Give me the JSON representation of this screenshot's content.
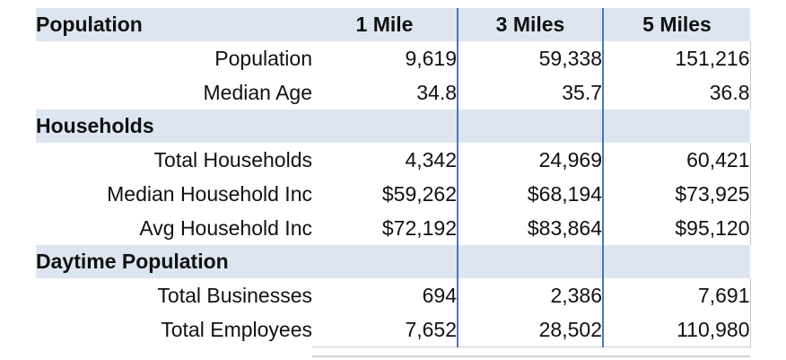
{
  "header": {
    "title": "Population",
    "col1": "1 Mile",
    "col2": "3 Miles",
    "col3": "5 Miles"
  },
  "population": [
    {
      "label": "Population",
      "v1": "9,619",
      "v2": "59,338",
      "v3": "151,216"
    },
    {
      "label": "Median Age",
      "v1": "34.8",
      "v2": "35.7",
      "v3": "36.8"
    }
  ],
  "households_title": "Households",
  "households": [
    {
      "label": "Total Households",
      "v1": "4,342",
      "v2": "24,969",
      "v3": "60,421"
    },
    {
      "label": "Median Household Inc",
      "v1": "$59,262",
      "v2": "$68,194",
      "v3": "$73,925"
    },
    {
      "label": "Avg Household Inc",
      "v1": "$72,192",
      "v2": "$83,864",
      "v3": "$95,120"
    }
  ],
  "daytime_title": "Daytime Population",
  "daytime": [
    {
      "label": "Total Businesses",
      "v1": "694",
      "v2": "2,386",
      "v3": "7,691"
    },
    {
      "label": "Total Employees",
      "v1": "7,652",
      "v2": "28,502",
      "v3": "110,980"
    }
  ],
  "colors": {
    "section_bg": "#dde6f0",
    "divider": "#4a78b8"
  }
}
